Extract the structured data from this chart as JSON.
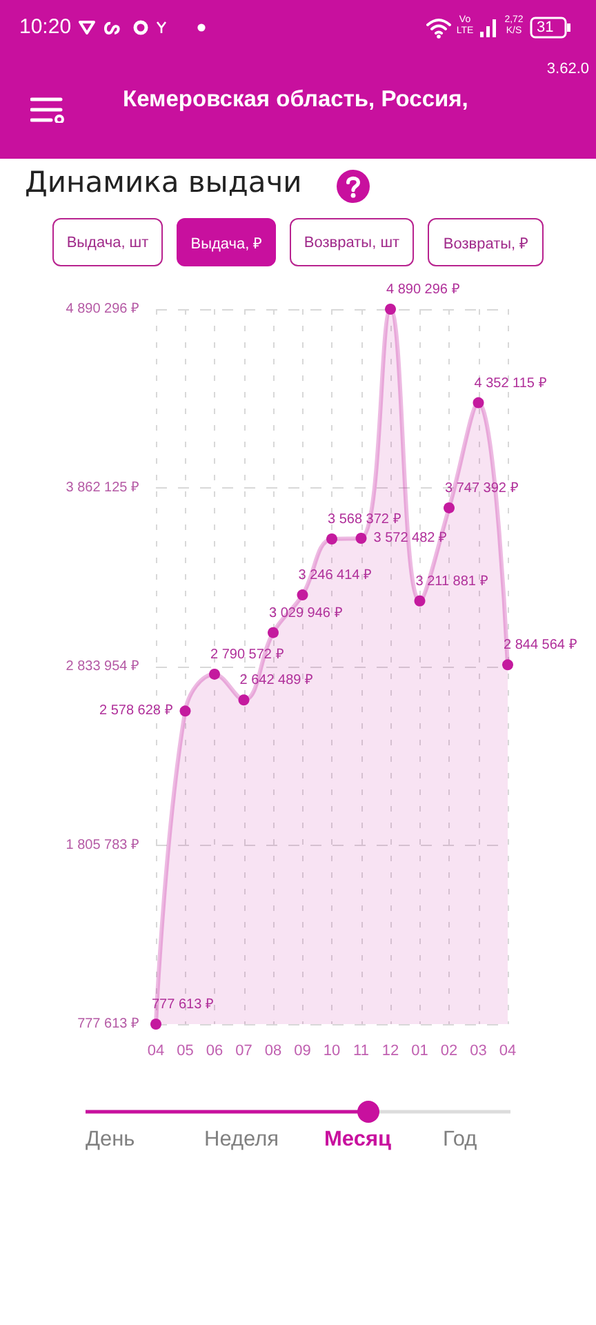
{
  "chart_data": {
    "type": "area",
    "title": "Динамика выдачи",
    "categories": [
      "04",
      "05",
      "06",
      "07",
      "08",
      "09",
      "10",
      "11",
      "12",
      "01",
      "02",
      "03",
      "04"
    ],
    "values": [
      777613,
      2578628,
      2790572,
      2642489,
      3029946,
      3246414,
      3568372,
      3572482,
      4890296,
      3211881,
      3747392,
      4352115,
      2844564
    ],
    "value_labels": [
      "777 613 ₽",
      "2 578 628 ₽",
      "2 790 572 ₽",
      "2 642 489 ₽",
      "3 029 946 ₽",
      "3 246 414 ₽",
      "3 568 372 ₽",
      "3 572 482 ₽",
      "4 890 296 ₽",
      "3 211 881 ₽",
      "3 747 392 ₽",
      "4 352 115 ₽",
      "2 844 564 ₽"
    ],
    "color": "#c41a9e",
    "marker": "circle",
    "line_style": "solid",
    "grid": true,
    "ylim": [
      777613,
      4890296
    ],
    "yticks": [
      {
        "value": 777613,
        "label": "777 613 ₽"
      },
      {
        "value": 1805783,
        "label": "1 805 783 ₽"
      },
      {
        "value": 2833954,
        "label": "2 833 954 ₽"
      },
      {
        "value": 3862125,
        "label": "3 862 125 ₽"
      },
      {
        "value": 4890296,
        "label": "4 890 296 ₽"
      }
    ],
    "annotations": [
      "10:20",
      "Vo LTE",
      "2,72 K/S",
      "31",
      "3.62.0",
      "Кемеровская область, Россия,",
      "Выдача, шт",
      "Выдача, ₽",
      "Возвраты, шт",
      "Возвраты, ₽",
      "День",
      "Неделя",
      "Месяц",
      "Год"
    ]
  }
}
